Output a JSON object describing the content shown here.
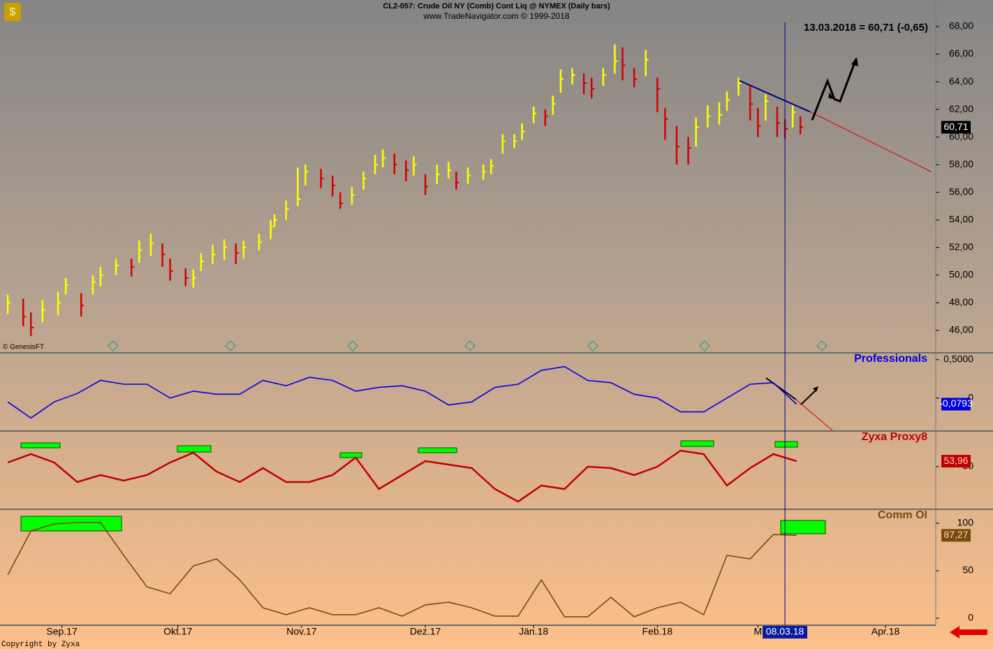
{
  "header": {
    "title": "CL2-057:  Crude Oil NY (Comb) Cont Liq @ NYMEX  (Daily bars)",
    "subtitle": "www.TradeNavigator.com © 1999-2018",
    "quote": "13.03.2018 = 60,71 (-0,65)",
    "source": "© GenesisFT",
    "copyright": "Copyright by Zyxa"
  },
  "chart_data": [
    {
      "type": "ohlc",
      "up_color": "#ffff00",
      "down_color": "#d40000",
      "x": [
        0,
        4,
        6,
        9,
        13,
        15,
        19,
        22,
        24,
        28,
        32,
        34,
        37,
        40,
        42,
        46,
        48,
        50,
        53,
        56,
        59,
        61,
        65,
        68,
        69,
        72,
        75,
        77,
        81,
        84,
        86,
        89,
        92,
        95,
        97,
        100,
        103,
        105,
        108,
        111,
        114,
        116,
        119,
        123,
        125,
        128,
        131,
        133,
        136,
        139,
        141,
        143,
        146,
        149,
        151,
        154,
        157,
        159,
        162,
        165,
        168,
        170,
        173,
        176,
        178,
        181,
        184,
        186,
        189,
        192,
        194,
        196,
        199,
        201,
        203,
        205
      ],
      "high": [
        48.6,
        48.3,
        47.3,
        48.2,
        48.8,
        49.8,
        48.7,
        50,
        50.6,
        51.2,
        51.2,
        52.5,
        53,
        52.3,
        51.2,
        50.5,
        50.4,
        51.6,
        52.2,
        52.6,
        52.3,
        52.5,
        53,
        54,
        54.4,
        55.4,
        57.8,
        58,
        57.7,
        57.2,
        56,
        56.4,
        57.5,
        58.7,
        59.1,
        58.8,
        58.3,
        58.6,
        57.3,
        58,
        58.2,
        57.5,
        57.8,
        58,
        58.4,
        60.2,
        60.2,
        61,
        62.2,
        62,
        63,
        64.9,
        65,
        64.6,
        64.3,
        65,
        66.7,
        66.5,
        65,
        66.3,
        64.3,
        62.1,
        60.8,
        60,
        61.4,
        62.3,
        62.5,
        63.3,
        64.3,
        63.7,
        62.1,
        63.1,
        62.2,
        61.3,
        62.3,
        61.5
      ],
      "low": [
        47.2,
        46.3,
        45.6,
        46.6,
        47.1,
        48.6,
        47,
        48.6,
        49.2,
        50,
        49.9,
        50.9,
        51.4,
        50.6,
        49.6,
        49.2,
        49.1,
        50.3,
        50.8,
        51.1,
        50.8,
        51.2,
        51.8,
        52.6,
        53.5,
        54,
        55,
        56.5,
        56.3,
        55.7,
        54.8,
        55.1,
        56.2,
        57.3,
        57.8,
        57.3,
        56.8,
        57.2,
        55.8,
        56.6,
        57,
        56.2,
        56.6,
        56.9,
        57.3,
        58.8,
        59.2,
        59.8,
        61,
        60.8,
        61.6,
        63.2,
        63.8,
        63.1,
        62.8,
        63.7,
        64.6,
        64.1,
        63.6,
        64.4,
        61.8,
        59.8,
        58,
        58,
        59.3,
        60.7,
        60.9,
        61.9,
        63,
        61.2,
        60,
        61.2,
        60,
        59.9,
        60.7,
        60.2
      ],
      "close": [
        48,
        47,
        46.2,
        47.5,
        48,
        49.3,
        47.8,
        49.5,
        50,
        50.7,
        50.6,
        51.8,
        52.3,
        51.5,
        50.3,
        49.8,
        49.8,
        51,
        51.5,
        52,
        51.6,
        52,
        52.4,
        53.5,
        54,
        54.8,
        55.5,
        57.5,
        57,
        56.5,
        55.2,
        55.8,
        57,
        58,
        58.5,
        58,
        57.6,
        58,
        56.4,
        57.3,
        57.6,
        56.7,
        57.2,
        57.5,
        57.9,
        59.7,
        59.7,
        60.4,
        61.7,
        61.5,
        62.4,
        64.2,
        64.5,
        63.9,
        63.5,
        64.5,
        65.5,
        65.2,
        64.2,
        65.6,
        63.5,
        61.3,
        59.3,
        59.2,
        60.7,
        61.5,
        61.6,
        62.7,
        63.9,
        62.4,
        60.8,
        62.6,
        61,
        60.6,
        61.8,
        60.71
      ],
      "last_value_label": "60,71",
      "xlim": [
        -2,
        240
      ],
      "ylim": [
        44.38,
        69.92
      ],
      "yticks": [
        {
          "value": 46,
          "label": "46,00"
        },
        {
          "value": 48,
          "label": "48,00"
        },
        {
          "value": 50,
          "label": "50,00"
        },
        {
          "value": 52,
          "label": "52,00"
        },
        {
          "value": 54,
          "label": "54,00"
        },
        {
          "value": 56,
          "label": "56,00"
        },
        {
          "value": 58,
          "label": "58,00"
        },
        {
          "value": 60,
          "label": "60,00"
        },
        {
          "value": 62,
          "label": "62,00"
        },
        {
          "value": 64,
          "label": "64,00"
        },
        {
          "value": 66,
          "label": "66,00"
        },
        {
          "value": 68,
          "label": "68,00"
        }
      ],
      "xticks": [
        {
          "value": 14,
          "label": "Sep.17"
        },
        {
          "value": 44,
          "label": "Okt.17"
        },
        {
          "value": 76,
          "label": "Nov.17"
        },
        {
          "value": 108,
          "label": "Dez.17"
        },
        {
          "value": 136,
          "label": "Jän.18"
        },
        {
          "value": 168,
          "label": "Feb.18"
        },
        {
          "value": 194,
          "label": "M"
        },
        {
          "value": 227,
          "label": "Apr.18"
        }
      ],
      "cursor": {
        "x": 201,
        "label": "08.03.18"
      }
    },
    {
      "type": "line",
      "title": "Professionals",
      "color": "#0000e0",
      "x": [
        0,
        6,
        12,
        18,
        24,
        30,
        36,
        42,
        48,
        54,
        60,
        66,
        72,
        78,
        84,
        90,
        96,
        102,
        108,
        114,
        120,
        126,
        132,
        138,
        144,
        150,
        156,
        162,
        168,
        174,
        180,
        186,
        192,
        198,
        204
      ],
      "values": [
        -0.05,
        -0.26,
        -0.05,
        0.06,
        0.23,
        0.18,
        0.18,
        0,
        0.09,
        0.05,
        0.05,
        0.23,
        0.16,
        0.27,
        0.23,
        0.09,
        0.14,
        0.16,
        0.09,
        -0.09,
        -0.05,
        0.14,
        0.18,
        0.36,
        0.41,
        0.23,
        0.2,
        0.05,
        0,
        -0.18,
        -0.18,
        0,
        0.18,
        0.2,
        -0.0793
      ],
      "last_value_label": "-0,0793",
      "xlim": [
        -2,
        240
      ],
      "ylim": [
        -0.42,
        0.58
      ],
      "yticks": [
        {
          "value": 0.5,
          "label": "0,5000"
        },
        0
      ]
    },
    {
      "type": "line",
      "title": "Zyxa Proxy8",
      "color": "#c00000",
      "x": [
        0,
        6,
        12,
        18,
        24,
        30,
        36,
        42,
        48,
        54,
        60,
        66,
        72,
        78,
        84,
        90,
        96,
        102,
        108,
        114,
        120,
        126,
        132,
        138,
        144,
        150,
        156,
        162,
        168,
        174,
        180,
        186,
        192,
        198,
        204
      ],
      "values": [
        53,
        59,
        53,
        39,
        44,
        40,
        44,
        53,
        60,
        46.5,
        39,
        49,
        39,
        39,
        44,
        56.5,
        34,
        44,
        54,
        51.5,
        49,
        34,
        25,
        36.5,
        34,
        50,
        49,
        44,
        50,
        61.5,
        59,
        36.5,
        49,
        59,
        53.96
      ],
      "last_value_label": "53,96",
      "xlim": [
        -2,
        240
      ],
      "ylim": [
        20,
        75
      ],
      "yticks": [
        50
      ]
    },
    {
      "type": "line",
      "title": "Comm OI",
      "color": "#7a4a10",
      "x": [
        0,
        6,
        12,
        18,
        24,
        30,
        36,
        42,
        48,
        54,
        60,
        66,
        72,
        78,
        84,
        90,
        96,
        102,
        108,
        114,
        120,
        126,
        132,
        138,
        144,
        150,
        156,
        162,
        168,
        174,
        180,
        186,
        192,
        198,
        204
      ],
      "values": [
        45.6,
        91.9,
        99.3,
        100.7,
        100.7,
        66.2,
        33.1,
        25.7,
        55.1,
        62.5,
        40.4,
        11,
        3.7,
        11,
        3.7,
        3.7,
        11,
        2.2,
        14,
        16.9,
        11,
        2.2,
        2.2,
        40.4,
        1.5,
        1.5,
        22.1,
        1.5,
        11,
        16.9,
        3.7,
        66.2,
        62.5,
        88.2,
        87.27
      ],
      "last_value_label": "87,27",
      "xlim": [
        -2,
        240
      ],
      "ylim": [
        -7.4,
        114
      ],
      "yticks": [
        0,
        50,
        100
      ]
    }
  ]
}
